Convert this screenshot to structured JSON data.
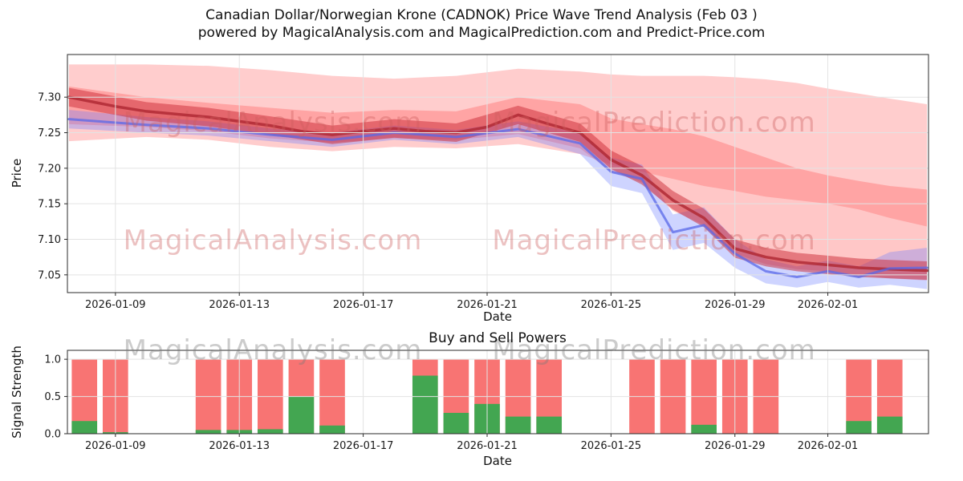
{
  "title": {
    "line1": "Canadian Dollar/Norwegian Krone (CADNOK) Price Wave Trend Analysis (Feb 03 )",
    "line2": "powered by MagicalAnalysis.com and MagicalPrediction.com and Predict-Price.com"
  },
  "watermarks": {
    "analysis": "MagicalAnalysis.com",
    "prediction": "MagicalPrediction.com"
  },
  "chart_data": [
    {
      "type": "area",
      "name": "price-wave-trend",
      "xlabel": "Date",
      "ylabel": "Price",
      "x_unit": "day index of January 2026 (32 = Feb 1)",
      "xlim": [
        7.45,
        35.25
      ],
      "ylim": [
        7.025,
        7.36
      ],
      "grid": true,
      "xticks": [
        9,
        13,
        17,
        21,
        25,
        29,
        32
      ],
      "xtick_labels": [
        "2026-01-09",
        "2026-01-13",
        "2026-01-17",
        "2026-01-21",
        "2026-01-25",
        "2026-01-29",
        "2026-02-01"
      ],
      "yticks": [
        7.05,
        7.1,
        7.15,
        7.2,
        7.25,
        7.3
      ],
      "ytick_labels": [
        "7.05",
        "7.10",
        "7.15",
        "7.20",
        "7.25",
        "7.30"
      ],
      "bands": [
        {
          "name": "red-outer-band",
          "color": "#ff4d4d",
          "opacity": 0.28,
          "x": [
            7.5,
            10,
            12,
            14,
            16,
            18,
            20,
            22,
            24,
            25,
            26,
            27,
            28,
            29,
            30,
            31,
            32,
            33,
            34,
            35.2
          ],
          "upper": [
            7.346,
            7.346,
            7.344,
            7.338,
            7.33,
            7.326,
            7.33,
            7.34,
            7.336,
            7.332,
            7.33,
            7.33,
            7.33,
            7.328,
            7.325,
            7.32,
            7.312,
            7.305,
            7.298,
            7.29
          ],
          "lower": [
            7.238,
            7.244,
            7.24,
            7.23,
            7.224,
            7.23,
            7.228,
            7.234,
            7.22,
            7.205,
            7.195,
            7.185,
            7.175,
            7.168,
            7.16,
            7.155,
            7.15,
            7.142,
            7.13,
            7.118
          ]
        },
        {
          "name": "red-mid-band",
          "color": "#ff4444",
          "opacity": 0.3,
          "x": [
            7.5,
            10,
            12,
            14,
            16,
            18,
            20,
            22,
            24,
            25,
            26,
            27,
            28,
            29,
            30,
            31,
            32,
            33,
            34,
            35.2
          ],
          "upper": [
            7.315,
            7.3,
            7.292,
            7.285,
            7.278,
            7.282,
            7.28,
            7.3,
            7.29,
            7.27,
            7.262,
            7.255,
            7.245,
            7.23,
            7.215,
            7.2,
            7.19,
            7.182,
            7.175,
            7.17
          ],
          "lower": [
            7.262,
            7.258,
            7.252,
            7.242,
            7.236,
            7.242,
            7.24,
            7.248,
            7.228,
            7.195,
            7.18,
            7.14,
            7.12,
            7.08,
            7.065,
            7.058,
            7.055,
            7.05,
            7.045,
            7.042
          ]
        },
        {
          "name": "blue-forecast-band",
          "color": "#6b7cff",
          "opacity": 0.33,
          "x": [
            7.5,
            10,
            12,
            14,
            16,
            18,
            20,
            22,
            24,
            25,
            26,
            27,
            28,
            29,
            30,
            31,
            32,
            33,
            34,
            35.2
          ],
          "upper": [
            7.282,
            7.272,
            7.266,
            7.256,
            7.25,
            7.26,
            7.254,
            7.266,
            7.25,
            7.215,
            7.205,
            7.135,
            7.145,
            7.1,
            7.072,
            7.062,
            7.07,
            7.062,
            7.082,
            7.088
          ],
          "lower": [
            7.256,
            7.25,
            7.246,
            7.238,
            7.23,
            7.24,
            7.234,
            7.244,
            7.22,
            7.175,
            7.165,
            7.085,
            7.095,
            7.06,
            7.038,
            7.032,
            7.04,
            7.032,
            7.036,
            7.03
          ]
        },
        {
          "name": "red-narrow-band",
          "color": "#cc2936",
          "opacity": 0.5,
          "x": [
            7.5,
            10,
            12,
            14,
            16,
            18,
            20,
            22,
            24,
            25,
            26,
            27,
            28,
            29,
            30,
            31,
            32,
            33,
            34,
            35.2
          ],
          "upper": [
            7.313,
            7.293,
            7.285,
            7.273,
            7.26,
            7.269,
            7.263,
            7.288,
            7.263,
            7.225,
            7.203,
            7.168,
            7.143,
            7.1,
            7.088,
            7.081,
            7.077,
            7.073,
            7.071,
            7.069
          ],
          "lower": [
            7.287,
            7.267,
            7.259,
            7.247,
            7.234,
            7.243,
            7.237,
            7.262,
            7.237,
            7.199,
            7.177,
            7.142,
            7.117,
            7.074,
            7.062,
            7.055,
            7.051,
            7.047,
            7.045,
            7.043
          ]
        }
      ],
      "lines": [
        {
          "name": "red-trend-line",
          "color": "#b02a35",
          "width": 3.5,
          "opacity": 0.85,
          "x": [
            7.5,
            9,
            10,
            11,
            12,
            13,
            14,
            15,
            16,
            17,
            18,
            19,
            20,
            21,
            22,
            23,
            24,
            25,
            26,
            27,
            28,
            29,
            30,
            31,
            32,
            33,
            34,
            35.2
          ],
          "y": [
            7.3,
            7.287,
            7.28,
            7.276,
            7.272,
            7.266,
            7.26,
            7.252,
            7.247,
            7.252,
            7.256,
            7.252,
            7.25,
            7.258,
            7.275,
            7.262,
            7.25,
            7.212,
            7.19,
            7.155,
            7.13,
            7.087,
            7.075,
            7.068,
            7.064,
            7.06,
            7.058,
            7.056
          ]
        },
        {
          "name": "blue-trend-line",
          "color": "#5868e8",
          "width": 3,
          "opacity": 0.75,
          "x": [
            7.5,
            10,
            12,
            14,
            16,
            18,
            20,
            22,
            24,
            25,
            26,
            27,
            28,
            29,
            30,
            31,
            32,
            33,
            34,
            35.2
          ],
          "y": [
            7.269,
            7.261,
            7.256,
            7.247,
            7.24,
            7.25,
            7.244,
            7.255,
            7.235,
            7.195,
            7.185,
            7.11,
            7.12,
            7.08,
            7.055,
            7.047,
            7.055,
            7.047,
            7.059,
            7.06
          ]
        }
      ]
    },
    {
      "type": "bar",
      "name": "buy-sell-powers",
      "title": "Buy and Sell Powers",
      "xlabel": "Date",
      "ylabel": "Signal Strength",
      "xlim": [
        7.45,
        35.25
      ],
      "ylim": [
        0,
        1.12
      ],
      "grid": true,
      "xticks": [
        9,
        13,
        17,
        21,
        25,
        29,
        32
      ],
      "xtick_labels": [
        "2026-01-09",
        "2026-01-13",
        "2026-01-17",
        "2026-01-21",
        "2026-01-25",
        "2026-01-29",
        "2026-02-01"
      ],
      "yticks": [
        0,
        0.5,
        1.0
      ],
      "ytick_labels": [
        "0.0",
        "0.5",
        "1.0"
      ],
      "bar_width_days": 0.82,
      "colors": {
        "sell": "#f75554",
        "buy": "#33aa4e"
      },
      "bars": [
        {
          "date": "2026-01-08",
          "day": 8,
          "sell": 1.0,
          "buy": 0.17
        },
        {
          "date": "2026-01-09",
          "day": 9,
          "sell": 1.0,
          "buy": 0.02
        },
        {
          "date": "2026-01-12",
          "day": 12,
          "sell": 1.0,
          "buy": 0.05
        },
        {
          "date": "2026-01-13",
          "day": 13,
          "sell": 1.0,
          "buy": 0.05
        },
        {
          "date": "2026-01-14",
          "day": 14,
          "sell": 1.0,
          "buy": 0.06
        },
        {
          "date": "2026-01-15",
          "day": 15,
          "sell": 1.0,
          "buy": 0.5
        },
        {
          "date": "2026-01-16",
          "day": 16,
          "sell": 1.0,
          "buy": 0.11
        },
        {
          "date": "2026-01-19",
          "day": 19,
          "sell": 1.0,
          "buy": 0.78
        },
        {
          "date": "2026-01-20",
          "day": 20,
          "sell": 1.0,
          "buy": 0.28
        },
        {
          "date": "2026-01-21",
          "day": 21,
          "sell": 1.0,
          "buy": 0.4
        },
        {
          "date": "2026-01-22",
          "day": 22,
          "sell": 1.0,
          "buy": 0.23
        },
        {
          "date": "2026-01-23",
          "day": 23,
          "sell": 1.0,
          "buy": 0.23
        },
        {
          "date": "2026-01-26",
          "day": 26,
          "sell": 1.0,
          "buy": 0.0
        },
        {
          "date": "2026-01-27",
          "day": 27,
          "sell": 1.0,
          "buy": 0.0
        },
        {
          "date": "2026-01-28",
          "day": 28,
          "sell": 1.0,
          "buy": 0.12
        },
        {
          "date": "2026-01-29",
          "day": 29,
          "sell": 1.0,
          "buy": 0.0
        },
        {
          "date": "2026-01-30",
          "day": 30,
          "sell": 1.0,
          "buy": 0.0
        },
        {
          "date": "2026-02-02",
          "day": 33,
          "sell": 1.0,
          "buy": 0.17
        },
        {
          "date": "2026-02-03",
          "day": 34,
          "sell": 1.0,
          "buy": 0.23
        }
      ]
    }
  ]
}
